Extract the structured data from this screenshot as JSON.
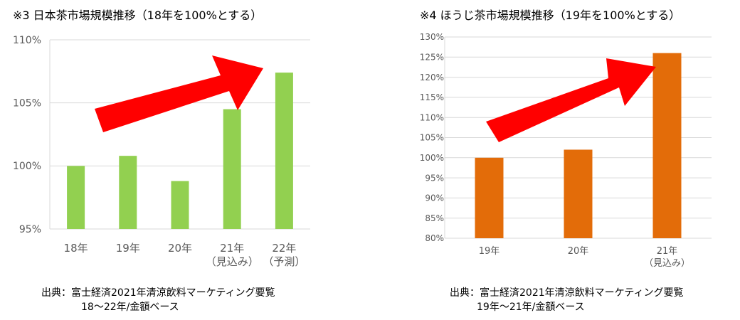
{
  "chart_data": [
    {
      "type": "bar",
      "title": "※3 日本茶市場規模推移（18年を100%とする）",
      "categories": [
        "18年",
        "19年",
        "20年",
        "21年",
        "22年"
      ],
      "category_notes": [
        "",
        "",
        "",
        "（見込み）",
        "（予測）"
      ],
      "values": [
        100.0,
        100.8,
        98.8,
        104.5,
        107.4
      ],
      "ytick_labels": [
        "95%",
        "100%",
        "105%",
        "110%"
      ],
      "ylim": [
        95,
        110
      ],
      "grid": true,
      "bar_color": "#92d050",
      "arrow_color": "#ff0000",
      "source_lines": [
        "出典：富士経済2021年清涼飲料マーケティング要覧",
        "18～22年/金額ベース"
      ]
    },
    {
      "type": "bar",
      "title": "※4 ほうじ茶市場規模推移（19年を100%とする）",
      "categories": [
        "19年",
        "20年",
        "21年"
      ],
      "category_notes": [
        "",
        "",
        "（見込み）"
      ],
      "values": [
        100,
        102,
        126
      ],
      "ytick_labels": [
        "80%",
        "85%",
        "90%",
        "95%",
        "100%",
        "105%",
        "110%",
        "115%",
        "120%",
        "125%",
        "130%"
      ],
      "ylim": [
        80,
        130
      ],
      "grid": true,
      "bar_color": "#e36c09",
      "arrow_color": "#ff0000",
      "source_lines": [
        "出典：富士経済2021年清涼飲料マーケティング要覧",
        "19年～21年/金額ベース"
      ]
    }
  ]
}
